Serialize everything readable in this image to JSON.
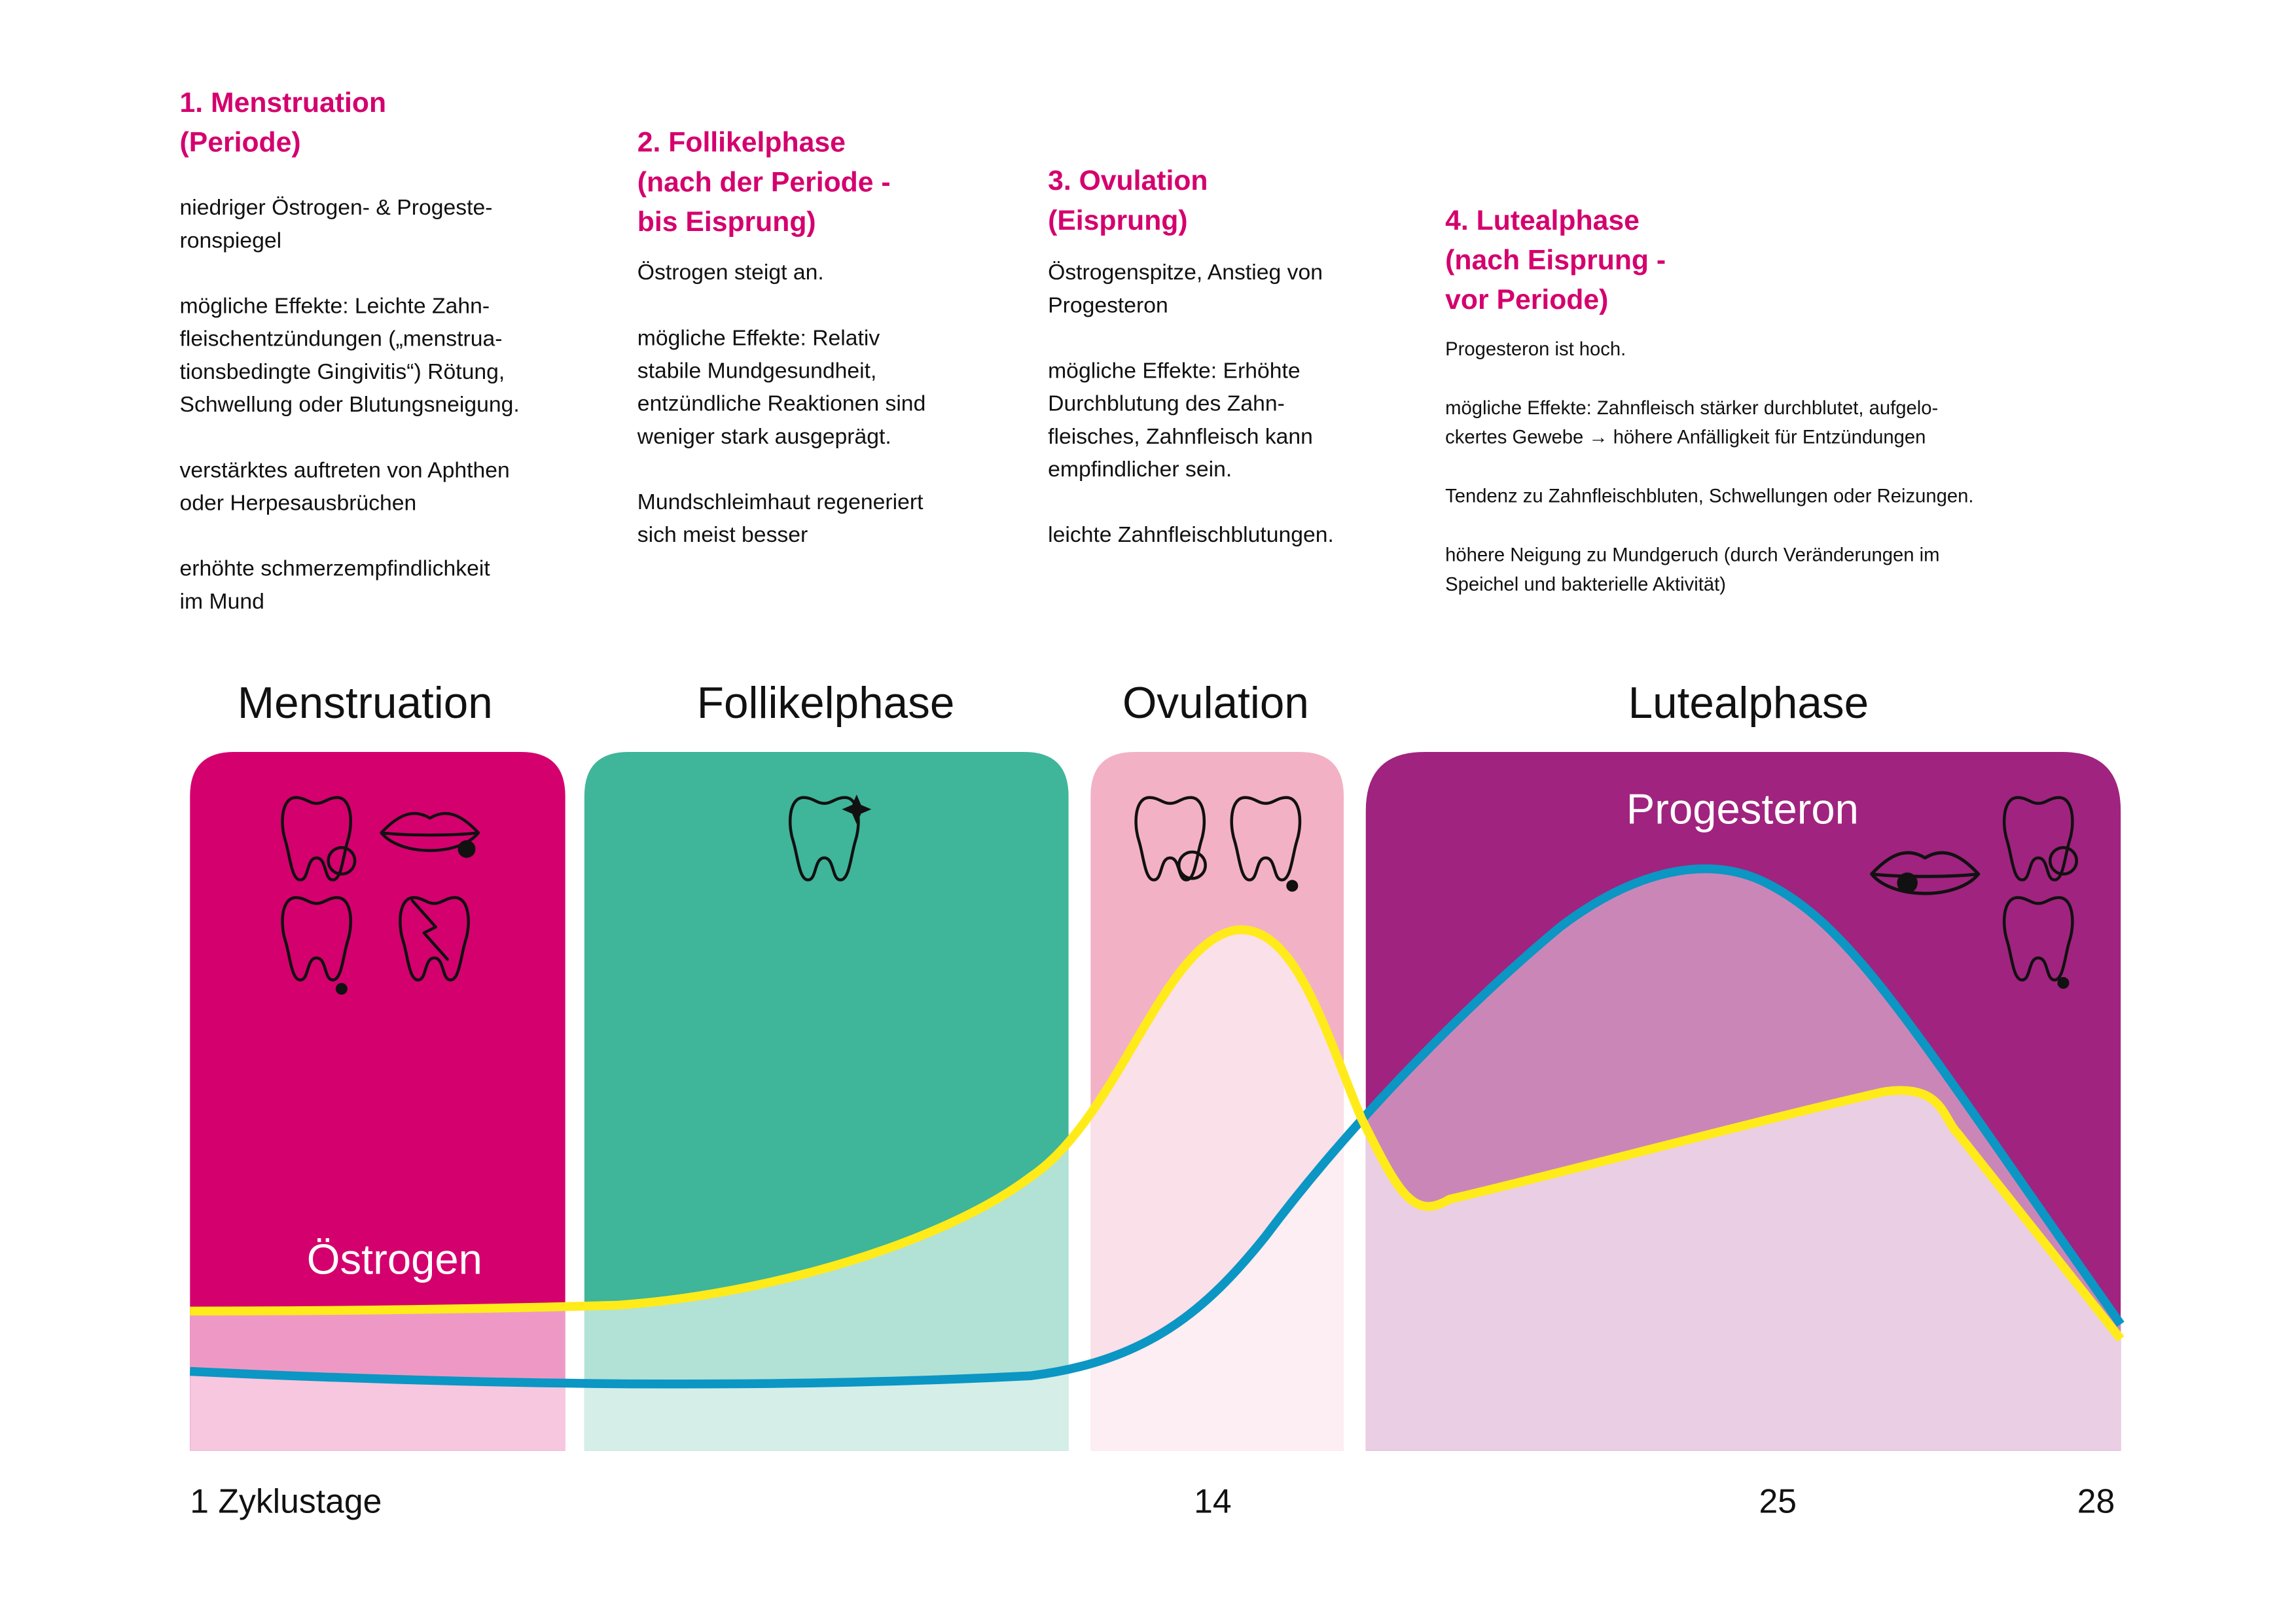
{
  "phases": [
    {
      "title": [
        "1. Menstruation",
        "(Periode)"
      ],
      "paragraphs": [
        [
          "niedriger Östrogen- & Progeste-",
          "ronspiegel"
        ],
        [
          "mögliche Effekte:  Leichte Zahn-",
          "fleischentzündungen („menstrua-",
          "tionsbedingte Gingivitis“) Rötung,",
          "Schwellung oder Blutungsneigung."
        ],
        [
          "verstärktes auftreten von Aphthen",
          "oder Herpesausbrüchen"
        ],
        [
          "erhöhte schmerzempfindlichkeit",
          "im Mund"
        ]
      ]
    },
    {
      "title": [
        "2. Follikelphase",
        "(nach der Periode -",
        "bis Eisprung)"
      ],
      "paragraphs": [
        [
          "Östrogen steigt an."
        ],
        [
          "mögliche Effekte: Relativ",
          "stabile Mundgesundheit,",
          "entzündliche Reaktionen sind",
          "weniger stark ausgeprägt."
        ],
        [
          "Mundschleimhaut regeneriert",
          "sich meist besser"
        ]
      ]
    },
    {
      "title": [
        "3. Ovulation",
        "(Eisprung)"
      ],
      "paragraphs": [
        [
          "Östrogenspitze, Anstieg von",
          "Progesteron"
        ],
        [
          "mögliche Effekte: Erhöhte",
          "Durchblutung des Zahn-",
          "fleisches, Zahnfleisch kann",
          "empfindlicher sein."
        ],
        [
          "leichte Zahnfleischblutungen."
        ]
      ]
    },
    {
      "title": [
        "4. Lutealphase",
        "(nach Eisprung -",
        "vor Periode)"
      ],
      "paragraphs": [
        [
          "Progesteron ist hoch."
        ],
        [
          "mögliche Effekte:  Zahnfleisch stärker durchblutet, aufgelo-",
          "ckertes Gewebe → höhere Anfälligkeit für Entzündungen"
        ],
        [
          "Tendenz zu Zahnfleischbluten, Schwellungen oder Reizungen."
        ],
        [
          "höhere Neigung zu Mundgeruch (durch Veränderungen im",
          "Speichel und bakterielle Aktivität)"
        ]
      ]
    }
  ],
  "bands": [
    "Menstruation",
    "Follikelphase",
    "Ovulation",
    "Lutealphase"
  ],
  "curves": {
    "estrogen": "Östrogen",
    "progesterone": "Progesteron"
  },
  "axis_labels": [
    "1 Zyklustage",
    "14",
    "25",
    "28"
  ]
}
